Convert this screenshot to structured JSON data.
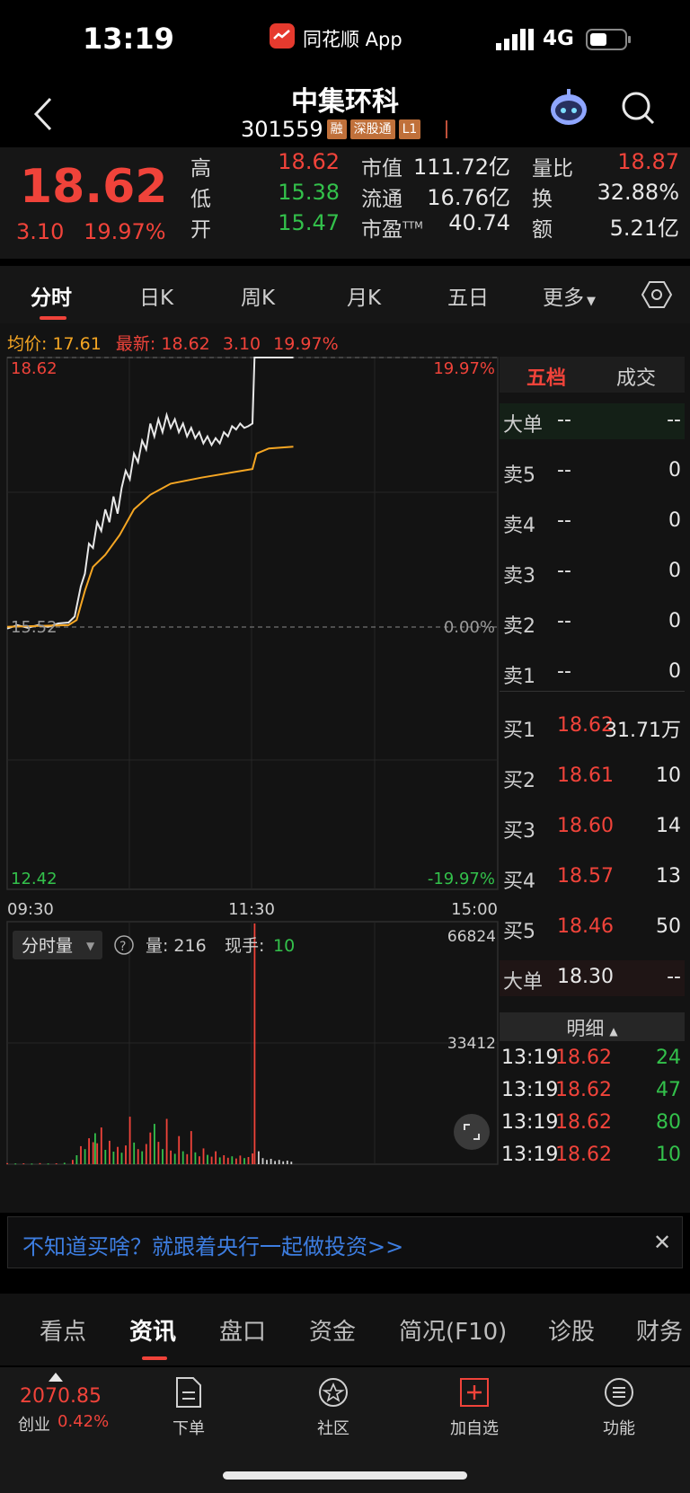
{
  "status_bar": {
    "time": "13:19",
    "app": "同花顺 App",
    "network": "4G"
  },
  "header": {
    "name": "中集环科",
    "code": "301559",
    "tags": [
      "融",
      "深股通",
      "L1"
    ]
  },
  "quote": {
    "price": "18.62",
    "change": "3.10",
    "change_pct": "19.97%",
    "high_label": "高",
    "high": "18.62",
    "low_label": "低",
    "low": "15.38",
    "open_label": "开",
    "open": "15.47",
    "mcap_label": "市值",
    "mcap": "111.72亿",
    "float_label": "流通",
    "float": "16.76亿",
    "pe_label": "市盈",
    "pe_sup": "TTM",
    "pe": "40.74",
    "vr_label": "量比",
    "vr": "18.87",
    "turn_label": "换",
    "turn": "32.88%",
    "amt_label": "额",
    "amt": "5.21亿"
  },
  "chart_tabs": [
    "分时",
    "日K",
    "周K",
    "月K",
    "五日",
    "更多"
  ],
  "chart_info": {
    "avg_label": "均价:",
    "avg": "17.61",
    "latest_label": "最新:",
    "latest": "18.62",
    "chg": "3.10",
    "chg_pct": "19.97%"
  },
  "chart_data": {
    "type": "line",
    "x_ticks": [
      "09:30",
      "11:30",
      "15:00"
    ],
    "y_left": {
      "top": "18.62",
      "mid": "15.52",
      "bottom": "12.42"
    },
    "y_right": {
      "top": "19.97%",
      "mid": "0.00%",
      "bottom": "-19.97%"
    },
    "ylim": [
      12.42,
      18.62
    ],
    "x_minutes_range": [
      0,
      240
    ],
    "series": [
      {
        "values": [
          [
            0,
            15.46
          ],
          [
            5,
            15.5
          ],
          [
            10,
            15.47
          ],
          [
            15,
            15.5
          ],
          [
            20,
            15.48
          ],
          [
            25,
            15.52
          ],
          [
            30,
            15.53
          ],
          [
            33,
            15.6
          ],
          [
            36,
            15.95
          ],
          [
            38,
            16.1
          ],
          [
            40,
            16.45
          ],
          [
            42,
            16.4
          ],
          [
            44,
            16.7
          ],
          [
            46,
            16.6
          ],
          [
            48,
            16.85
          ],
          [
            50,
            16.7
          ],
          [
            52,
            17.0
          ],
          [
            54,
            16.8
          ],
          [
            56,
            17.1
          ],
          [
            58,
            17.3
          ],
          [
            60,
            17.2
          ],
          [
            62,
            17.5
          ],
          [
            64,
            17.4
          ],
          [
            66,
            17.65
          ],
          [
            68,
            17.55
          ],
          [
            70,
            17.85
          ],
          [
            72,
            17.7
          ],
          [
            74,
            17.9
          ],
          [
            76,
            17.75
          ],
          [
            78,
            17.95
          ],
          [
            80,
            17.8
          ],
          [
            82,
            17.9
          ],
          [
            84,
            17.75
          ],
          [
            86,
            17.85
          ],
          [
            88,
            17.7
          ],
          [
            90,
            17.8
          ],
          [
            92,
            17.68
          ],
          [
            94,
            17.75
          ],
          [
            96,
            17.62
          ],
          [
            98,
            17.7
          ],
          [
            100,
            17.6
          ],
          [
            102,
            17.68
          ],
          [
            104,
            17.62
          ],
          [
            106,
            17.75
          ],
          [
            108,
            17.7
          ],
          [
            110,
            17.82
          ],
          [
            112,
            17.78
          ],
          [
            114,
            17.85
          ],
          [
            116,
            17.8
          ],
          [
            118,
            17.82
          ],
          [
            120,
            17.85
          ],
          [
            121,
            18.62
          ],
          [
            130,
            18.62
          ],
          [
            140,
            18.62
          ]
        ]
      },
      {
        "values": [
          [
            0,
            15.48
          ],
          [
            30,
            15.5
          ],
          [
            34,
            15.56
          ],
          [
            38,
            15.9
          ],
          [
            42,
            16.18
          ],
          [
            48,
            16.32
          ],
          [
            55,
            16.55
          ],
          [
            62,
            16.85
          ],
          [
            70,
            17.02
          ],
          [
            80,
            17.15
          ],
          [
            95,
            17.22
          ],
          [
            110,
            17.28
          ],
          [
            120,
            17.32
          ],
          [
            122,
            17.5
          ],
          [
            128,
            17.56
          ],
          [
            140,
            17.58
          ]
        ]
      }
    ],
    "volume": {
      "label": "分时量",
      "vol_label": "量:",
      "vol": "216",
      "hand_label": "现手:",
      "hand": "10",
      "ymax": "66824",
      "ymid": "33412",
      "max": 66824,
      "bars": [
        [
          0,
          300,
          "r"
        ],
        [
          4,
          200,
          "g"
        ],
        [
          8,
          250,
          "r"
        ],
        [
          12,
          180,
          "g"
        ],
        [
          16,
          300,
          "r"
        ],
        [
          20,
          200,
          "g"
        ],
        [
          24,
          260,
          "r"
        ],
        [
          28,
          400,
          "g"
        ],
        [
          32,
          1200,
          "r"
        ],
        [
          34,
          2500,
          "g"
        ],
        [
          36,
          5000,
          "r"
        ],
        [
          38,
          4200,
          "g"
        ],
        [
          40,
          7200,
          "r"
        ],
        [
          42,
          6100,
          "r"
        ],
        [
          43,
          8600,
          "g"
        ],
        [
          44,
          5800,
          "r"
        ],
        [
          46,
          10200,
          "r"
        ],
        [
          48,
          4000,
          "g"
        ],
        [
          50,
          6500,
          "r"
        ],
        [
          52,
          3500,
          "g"
        ],
        [
          54,
          4800,
          "r"
        ],
        [
          56,
          3200,
          "g"
        ],
        [
          58,
          5200,
          "r"
        ],
        [
          60,
          13200,
          "r"
        ],
        [
          62,
          6000,
          "g"
        ],
        [
          64,
          4200,
          "r"
        ],
        [
          66,
          3600,
          "g"
        ],
        [
          68,
          5600,
          "r"
        ],
        [
          70,
          8800,
          "r"
        ],
        [
          72,
          11200,
          "g"
        ],
        [
          74,
          6200,
          "r"
        ],
        [
          76,
          4200,
          "g"
        ],
        [
          78,
          12600,
          "r"
        ],
        [
          80,
          3800,
          "r"
        ],
        [
          82,
          2900,
          "g"
        ],
        [
          84,
          7800,
          "r"
        ],
        [
          86,
          3600,
          "g"
        ],
        [
          88,
          2800,
          "r"
        ],
        [
          90,
          9200,
          "r"
        ],
        [
          92,
          3300,
          "g"
        ],
        [
          94,
          2200,
          "r"
        ],
        [
          96,
          4400,
          "r"
        ],
        [
          98,
          2600,
          "g"
        ],
        [
          100,
          2100,
          "r"
        ],
        [
          102,
          3600,
          "r"
        ],
        [
          104,
          1900,
          "g"
        ],
        [
          106,
          2500,
          "r"
        ],
        [
          108,
          1800,
          "r"
        ],
        [
          110,
          2200,
          "g"
        ],
        [
          112,
          1600,
          "r"
        ],
        [
          114,
          2400,
          "r"
        ],
        [
          116,
          1700,
          "g"
        ],
        [
          118,
          2000,
          "r"
        ],
        [
          120,
          3000,
          "r"
        ],
        [
          121,
          66824,
          "r"
        ],
        [
          123,
          3600,
          "w"
        ],
        [
          125,
          1700,
          "w"
        ],
        [
          127,
          1200,
          "w"
        ],
        [
          129,
          1500,
          "w"
        ],
        [
          131,
          900,
          "w"
        ],
        [
          133,
          1200,
          "w"
        ],
        [
          135,
          800,
          "w"
        ],
        [
          137,
          1000,
          "w"
        ],
        [
          139,
          700,
          "w"
        ]
      ]
    }
  },
  "order_book": {
    "tabs": [
      "五档",
      "成交"
    ],
    "big_top": {
      "label": "大单",
      "price": "--",
      "vol": "--"
    },
    "asks": [
      {
        "label": "卖5",
        "price": "--",
        "vol": "0"
      },
      {
        "label": "卖4",
        "price": "--",
        "vol": "0"
      },
      {
        "label": "卖3",
        "price": "--",
        "vol": "0"
      },
      {
        "label": "卖2",
        "price": "--",
        "vol": "0"
      },
      {
        "label": "卖1",
        "price": "--",
        "vol": "0"
      }
    ],
    "bids": [
      {
        "label": "买1",
        "price": "18.62",
        "vol": "31.71万"
      },
      {
        "label": "买2",
        "price": "18.61",
        "vol": "10"
      },
      {
        "label": "买3",
        "price": "18.60",
        "vol": "14"
      },
      {
        "label": "买4",
        "price": "18.57",
        "vol": "13"
      },
      {
        "label": "买5",
        "price": "18.46",
        "vol": "50"
      }
    ],
    "big_bottom": {
      "label": "大单",
      "price": "18.30",
      "vol": "--"
    },
    "detail_label": "明细",
    "ticks": [
      {
        "time": "13:19",
        "price": "18.62",
        "vol": "24"
      },
      {
        "time": "13:19",
        "price": "18.62",
        "vol": "47"
      },
      {
        "time": "13:19",
        "price": "18.62",
        "vol": "80"
      },
      {
        "time": "13:19",
        "price": "18.62",
        "vol": "10"
      }
    ]
  },
  "banner": {
    "text": "不知道买啥？就跟着央行一起做投资>>"
  },
  "info_tabs": [
    "看点",
    "资讯",
    "盘口",
    "资金",
    "简况(F10)",
    "诊股",
    "财务"
  ],
  "toolbar": {
    "index_value": "2070.85",
    "index_name": "创业",
    "index_pct": "0.42%",
    "items": [
      "下单",
      "社区",
      "加自选",
      "功能"
    ]
  },
  "colors": {
    "up": "#f0433a",
    "down": "#33c14b",
    "avg": "#f5a623",
    "price_line": "#e8e8e8"
  }
}
